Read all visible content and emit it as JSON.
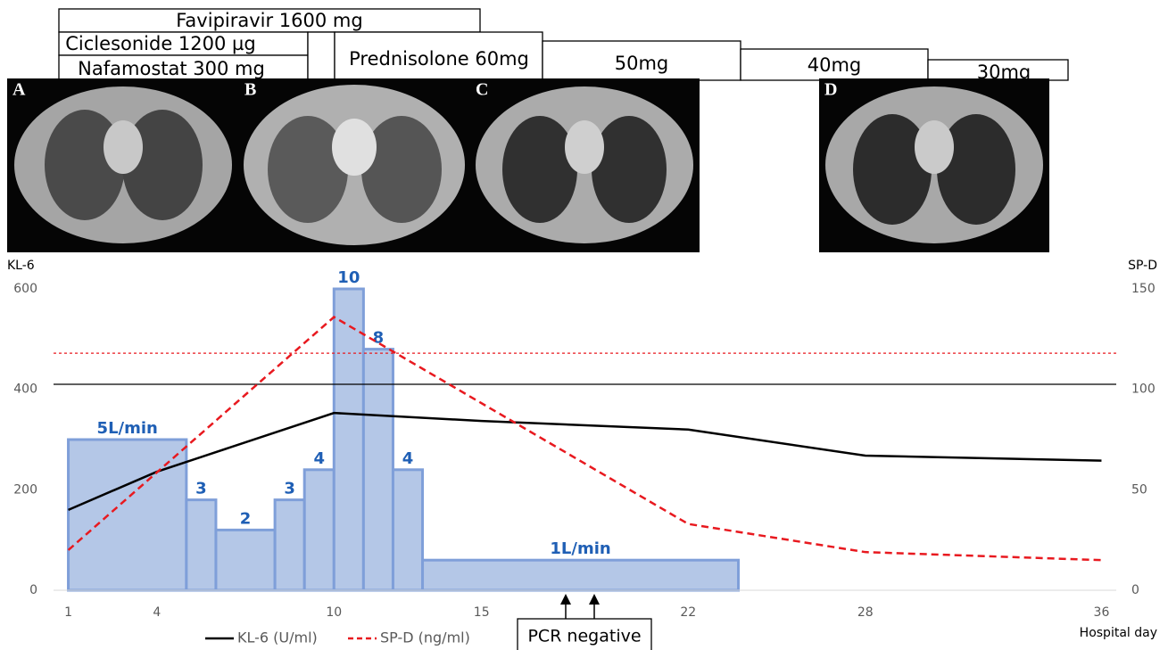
{
  "chart_data": {
    "type": "line",
    "treatments": [
      "Favipiravir 1600 mg",
      "Ciclesonide 1200 µg",
      "Nafamostat 300 mg",
      "Prednisolone 60mg",
      "50mg",
      "40mg",
      "30mg"
    ],
    "ct_panels": [
      "A",
      "B",
      "C",
      "D"
    ],
    "y_label": "KL-6",
    "y2_label": "SP-D",
    "x_label": "Hospital day",
    "xlim": [
      0.5,
      36.5
    ],
    "xticks": [
      1,
      4,
      10,
      15,
      22,
      28,
      36
    ],
    "ylim": [
      0,
      600
    ],
    "yticks": [
      0,
      200,
      400,
      600
    ],
    "y2lim": [
      0,
      150
    ],
    "y2ticks": [
      0,
      50,
      100,
      150
    ],
    "series": [
      {
        "name": "KL-6 (U/ml)",
        "color": "#000000",
        "dash": false,
        "x": [
          1,
          4,
          10,
          15,
          22,
          28,
          36
        ],
        "values": [
          160,
          236,
          353,
          337,
          320,
          268,
          258
        ]
      },
      {
        "name": "SP-D (ng/ml)",
        "color": "#e8191f",
        "dash": true,
        "axis": "y2",
        "x": [
          1,
          10,
          22,
          28,
          36
        ],
        "values": [
          20,
          136,
          33,
          19,
          15
        ]
      }
    ],
    "reference_lines": [
      {
        "value": 410,
        "color": "#000000"
      },
      {
        "value": 118,
        "axis": "y2",
        "color": "#e8191f"
      }
    ],
    "oxygen": {
      "bins": [
        1,
        5,
        6,
        8,
        9,
        10,
        11,
        12,
        13,
        23.7
      ],
      "values": [
        5,
        3,
        2,
        3,
        4,
        10,
        8,
        4,
        1
      ],
      "value_labels": [
        "5L/min",
        "3",
        "2",
        "3",
        "4",
        "10",
        "8",
        "4",
        "1L/min"
      ],
      "o2lim": [
        0,
        10
      ],
      "color": "#b4c7e7",
      "edge_color": "#7f9fd9",
      "label_color": "#1f5fb5"
    },
    "annotation": "PCR negative"
  }
}
